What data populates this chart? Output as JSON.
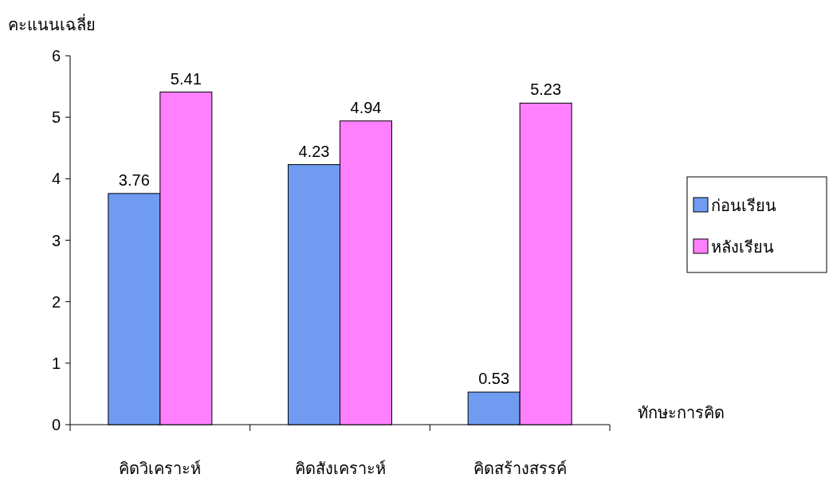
{
  "chart_data": {
    "type": "bar",
    "ylabel": "คะแนนเฉลี่ย",
    "xlabel": "ทักษะการคิด",
    "categories": [
      "คิดวิเคราะห์",
      "คิดสังเคราะห์",
      "คิดสร้างสรรค์"
    ],
    "series": [
      {
        "name": "ก่อนเรียน",
        "color": "#6f9bf0",
        "values": [
          3.76,
          4.23,
          0.53
        ]
      },
      {
        "name": "หลังเรียน",
        "color": "#ff80ff",
        "values": [
          5.41,
          4.94,
          5.23
        ]
      }
    ],
    "ylim": [
      0,
      6
    ],
    "yticks": [
      0,
      1,
      2,
      3,
      4,
      5,
      6
    ],
    "data_labels": true,
    "legend": "right",
    "grid": false
  }
}
